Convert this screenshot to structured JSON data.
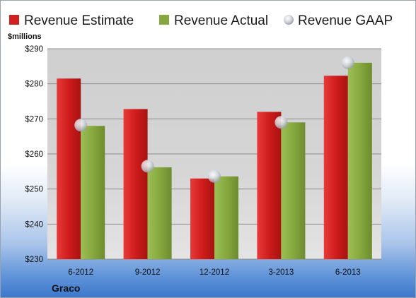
{
  "chart_data": {
    "type": "bar",
    "categories": [
      "6-2012",
      "9-2012",
      "12-2012",
      "3-2013",
      "6-2013"
    ],
    "series": [
      {
        "name": "Revenue Estimate",
        "type": "bar",
        "color": "#d21f1f",
        "values": [
          281.5,
          272.8,
          253.0,
          272.0,
          282.3
        ]
      },
      {
        "name": "Revenue Actual",
        "type": "bar",
        "color": "#86a83e",
        "values": [
          268.0,
          256.2,
          253.6,
          269.0,
          286.0
        ]
      },
      {
        "name": "Revenue GAAP",
        "type": "scatter",
        "color": "#c9ced6",
        "values": [
          268.2,
          256.5,
          253.6,
          269.0,
          286.0
        ]
      }
    ],
    "ylim": [
      230,
      290
    ],
    "yticks": [
      230,
      240,
      250,
      260,
      270,
      280,
      290
    ],
    "ytick_labels": [
      "$230",
      "$240",
      "$250",
      "$260",
      "$270",
      "$280",
      "$290"
    ],
    "ylabel": "$millions",
    "grid": true,
    "legend_position": "top"
  },
  "company": "Graco"
}
